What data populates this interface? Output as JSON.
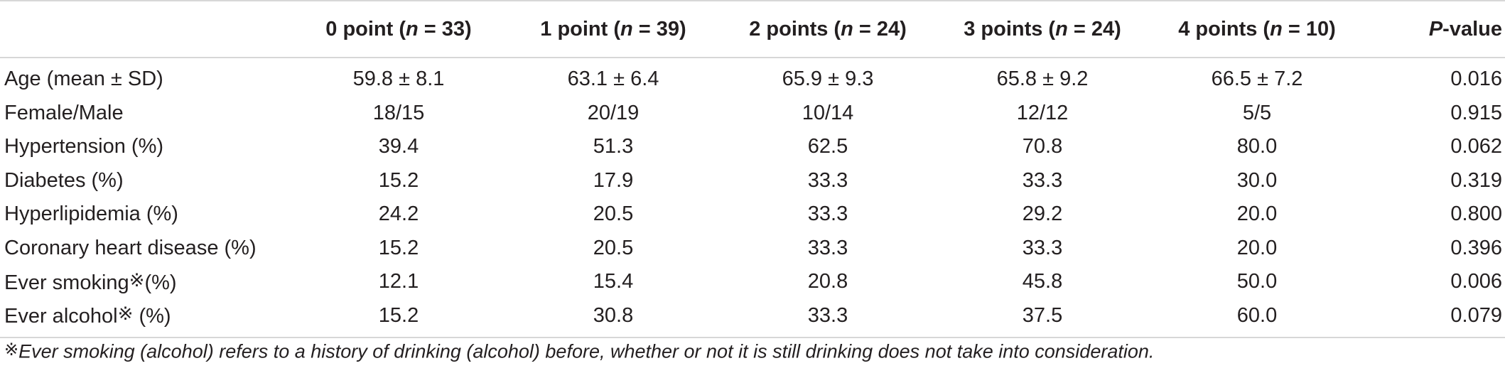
{
  "table": {
    "headers": [
      "",
      {
        "pre": "0 point (",
        "var": "n",
        "post": " = 33)"
      },
      {
        "pre": "1 point (",
        "var": "n",
        "post": " = 39)"
      },
      {
        "pre": "2 points (",
        "var": "n",
        "post": " = 24)"
      },
      {
        "pre": "3 points (",
        "var": "n",
        "post": " = 24)"
      },
      {
        "pre": "4 points (",
        "var": "n",
        "post": " = 10)"
      },
      {
        "pre": "",
        "var": "P",
        "post": "-value"
      }
    ],
    "rows": [
      {
        "label": "Age (mean ± SD)",
        "values": [
          "59.8 ± 8.1",
          "63.1 ± 6.4",
          "65.9 ± 9.3",
          "65.8 ± 9.2",
          "66.5 ± 7.2",
          "0.016"
        ]
      },
      {
        "label": "Female/Male",
        "values": [
          "18/15",
          "20/19",
          "10/14",
          "12/12",
          "5/5",
          "0.915"
        ]
      },
      {
        "label": "Hypertension (%)",
        "values": [
          "39.4",
          "51.3",
          "62.5",
          "70.8",
          "80.0",
          "0.062"
        ]
      },
      {
        "label": "Diabetes (%)",
        "values": [
          "15.2",
          "17.9",
          "33.3",
          "33.3",
          "30.0",
          "0.319"
        ]
      },
      {
        "label": "Hyperlipidemia (%)",
        "values": [
          "24.2",
          "20.5",
          "33.3",
          "29.2",
          "20.0",
          "0.800"
        ]
      },
      {
        "label": "Coronary heart disease (%)",
        "values": [
          "15.2",
          "20.5",
          "33.3",
          "33.3",
          "20.0",
          "0.396"
        ]
      },
      {
        "label_pre": "Ever smoking",
        "label_sym": "※",
        "label_post": "(%)",
        "values": [
          "12.1",
          "15.4",
          "20.8",
          "45.8",
          "50.0",
          "0.006"
        ]
      },
      {
        "label_pre": "Ever alcohol",
        "label_sym": "※",
        "label_post": " (%)",
        "values": [
          "15.2",
          "30.8",
          "33.3",
          "37.5",
          "60.0",
          "0.079"
        ]
      }
    ]
  },
  "footnote": {
    "symbol": "※",
    "text": "Ever smoking (alcohol) refers to a history of drinking (alcohol) before, whether or not it is still drinking does not take into consideration."
  }
}
